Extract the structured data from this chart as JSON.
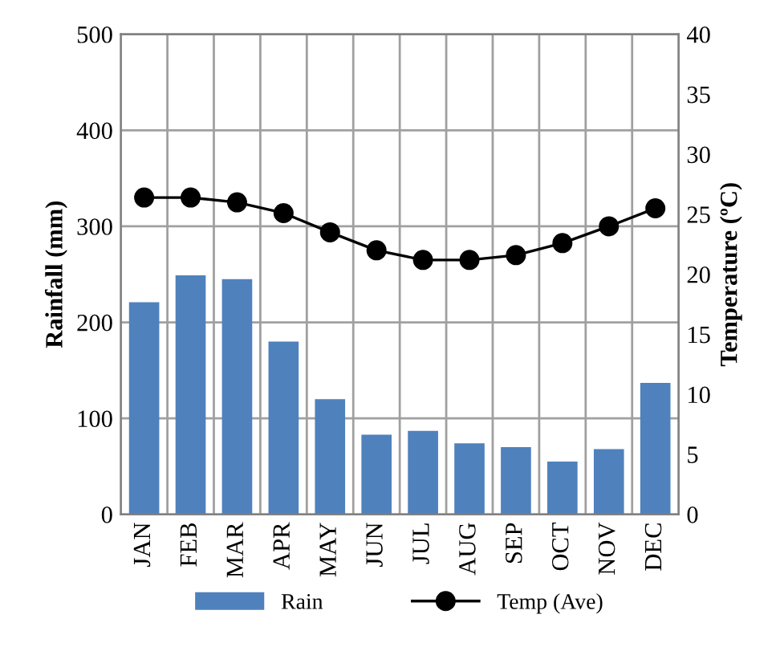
{
  "chart_data": {
    "type": "bar",
    "categories": [
      "JAN",
      "FEB",
      "MAR",
      "APR",
      "MAY",
      "JUN",
      "JUL",
      "AUG",
      "SEP",
      "OCT",
      "NOV",
      "DEC"
    ],
    "series": [
      {
        "name": "Rain",
        "color": "#4f81bd",
        "values": [
          221,
          249,
          245,
          180,
          120,
          83,
          87,
          74,
          70,
          55,
          68,
          137
        ]
      },
      {
        "name": "Temp (Ave)",
        "type": "line",
        "axis": "y2",
        "color": "#000000",
        "marker": "circle",
        "values": [
          26.4,
          26.4,
          26.0,
          25.1,
          23.5,
          22.0,
          21.2,
          21.2,
          21.6,
          22.6,
          24.0,
          25.5
        ]
      }
    ],
    "ylabel": "Rainfall (mm)",
    "y2label": "Temperature (ºC)",
    "ylim": [
      0,
      500
    ],
    "yticks": [
      0,
      100,
      200,
      300,
      400,
      500
    ],
    "y2lim": [
      0,
      40
    ],
    "y2ticks": [
      0,
      5,
      10,
      15,
      20,
      25,
      30,
      35,
      40
    ],
    "grid": true,
    "legend": "bottom"
  }
}
